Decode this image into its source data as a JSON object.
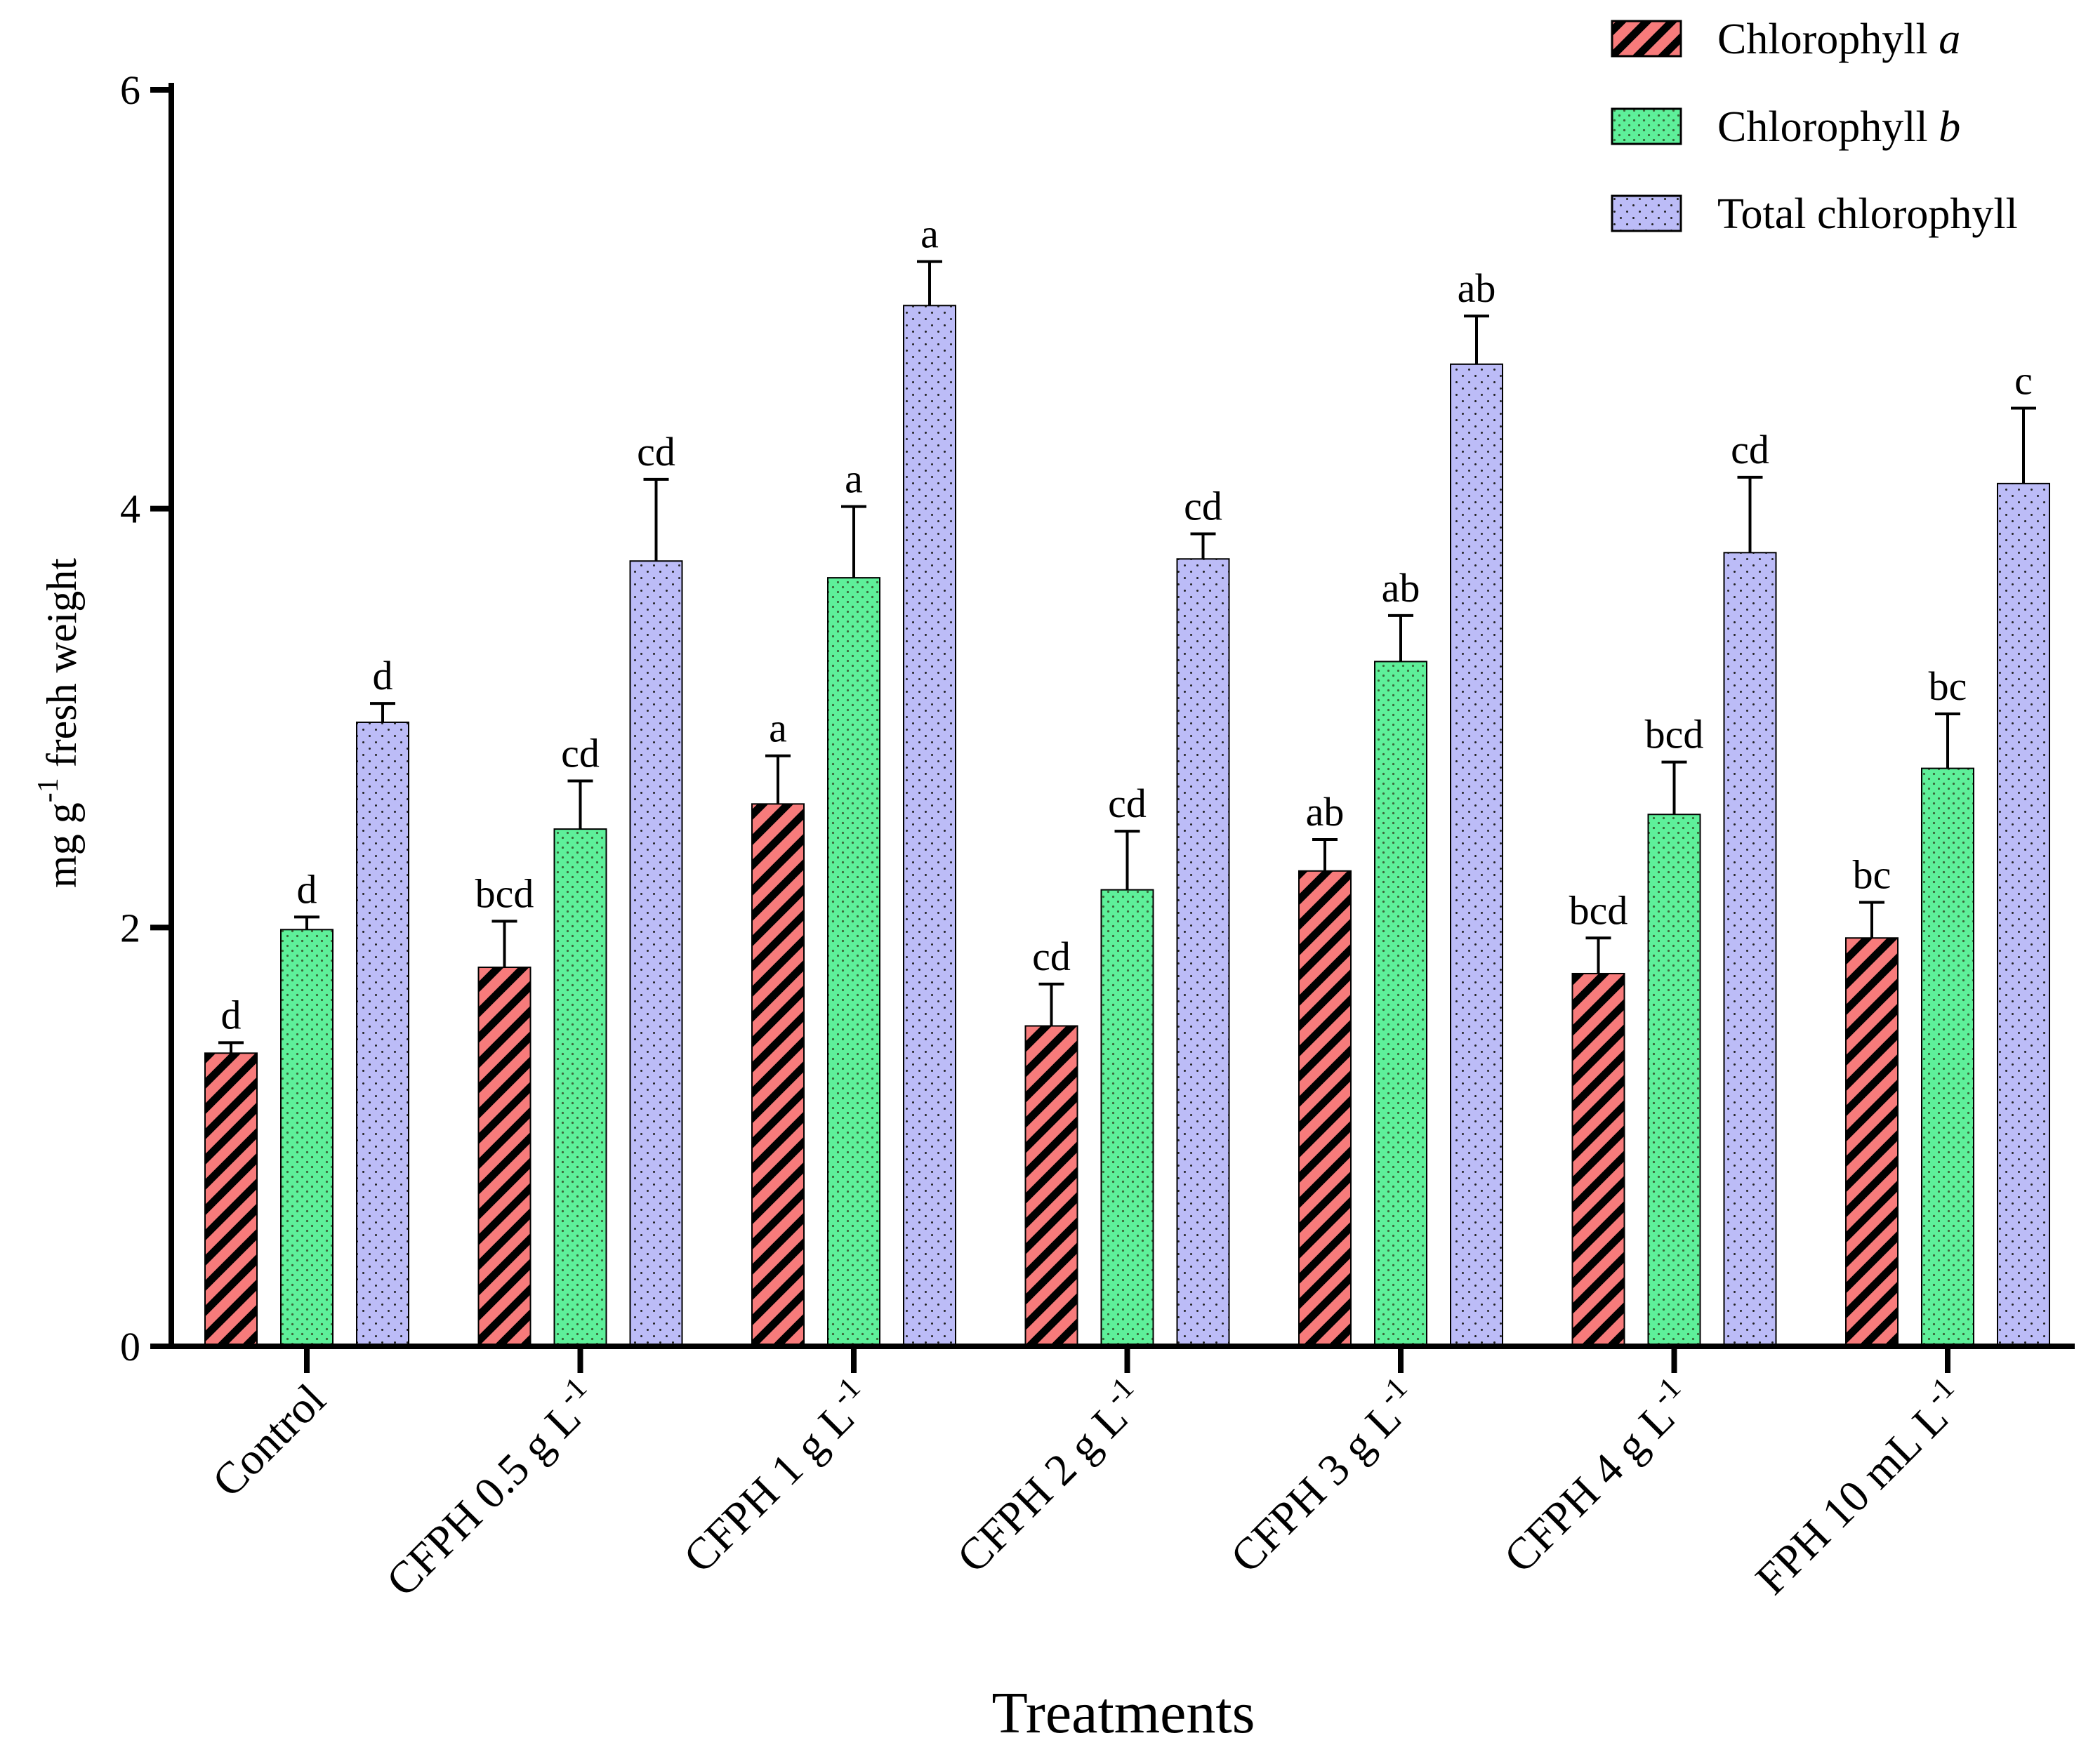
{
  "chart_data": {
    "type": "bar",
    "title": "",
    "xlabel": "Treatments",
    "ylabel": {
      "pre": "mg g",
      "sup": "-1",
      "post": " fresh weight"
    },
    "ylim": [
      0,
      6
    ],
    "yticks": [
      "0",
      "2",
      "4",
      "6"
    ],
    "ytick_values": [
      0,
      2,
      4,
      6
    ],
    "grid": false,
    "legend_position": "top-right",
    "categories": [
      {
        "label": "Control",
        "unit": "",
        "sup": ""
      },
      {
        "label": "CFPH 0.5 g L",
        "unit": "",
        "sup": "-1"
      },
      {
        "label": "CFPH 1 g L",
        "unit": "",
        "sup": "-1"
      },
      {
        "label": "CFPH 2 g L",
        "unit": "",
        "sup": "-1"
      },
      {
        "label": "CFPH 3 g L",
        "unit": "",
        "sup": "-1"
      },
      {
        "label": "CFPH 4 g L",
        "unit": "",
        "sup": "-1"
      },
      {
        "label": "FPH 10 mL L",
        "unit": "",
        "sup": "-1"
      }
    ],
    "series": [
      {
        "name": "Chlorophyll",
        "name_italic": "a",
        "color": "#f77b7b",
        "pattern": "diagonal-stripes",
        "values": [
          1.4,
          1.81,
          2.59,
          1.53,
          2.27,
          1.78,
          1.95
        ],
        "errors": [
          0.05,
          0.22,
          0.23,
          0.2,
          0.15,
          0.17,
          0.17
        ],
        "letters": [
          "d",
          "bcd",
          "a",
          "cd",
          "ab",
          "bcd",
          "bc"
        ]
      },
      {
        "name": "Chlorophyll",
        "name_italic": "b",
        "color": "#5ef09a",
        "pattern": "dots",
        "values": [
          1.99,
          2.47,
          3.67,
          2.18,
          3.27,
          2.54,
          2.76
        ],
        "errors": [
          0.06,
          0.23,
          0.34,
          0.28,
          0.22,
          0.25,
          0.26
        ],
        "letters": [
          "d",
          "cd",
          "a",
          "cd",
          "ab",
          "bcd",
          "bc"
        ]
      },
      {
        "name": "Total chlorophyll",
        "name_italic": "",
        "color": "#bcbcf7",
        "pattern": "fine-dots",
        "values": [
          2.98,
          3.75,
          4.97,
          3.76,
          4.69,
          3.79,
          4.12
        ],
        "errors": [
          0.09,
          0.39,
          0.21,
          0.12,
          0.23,
          0.36,
          0.36
        ],
        "letters": [
          "d",
          "cd",
          "a",
          "cd",
          "ab",
          "cd",
          "c"
        ]
      }
    ]
  }
}
